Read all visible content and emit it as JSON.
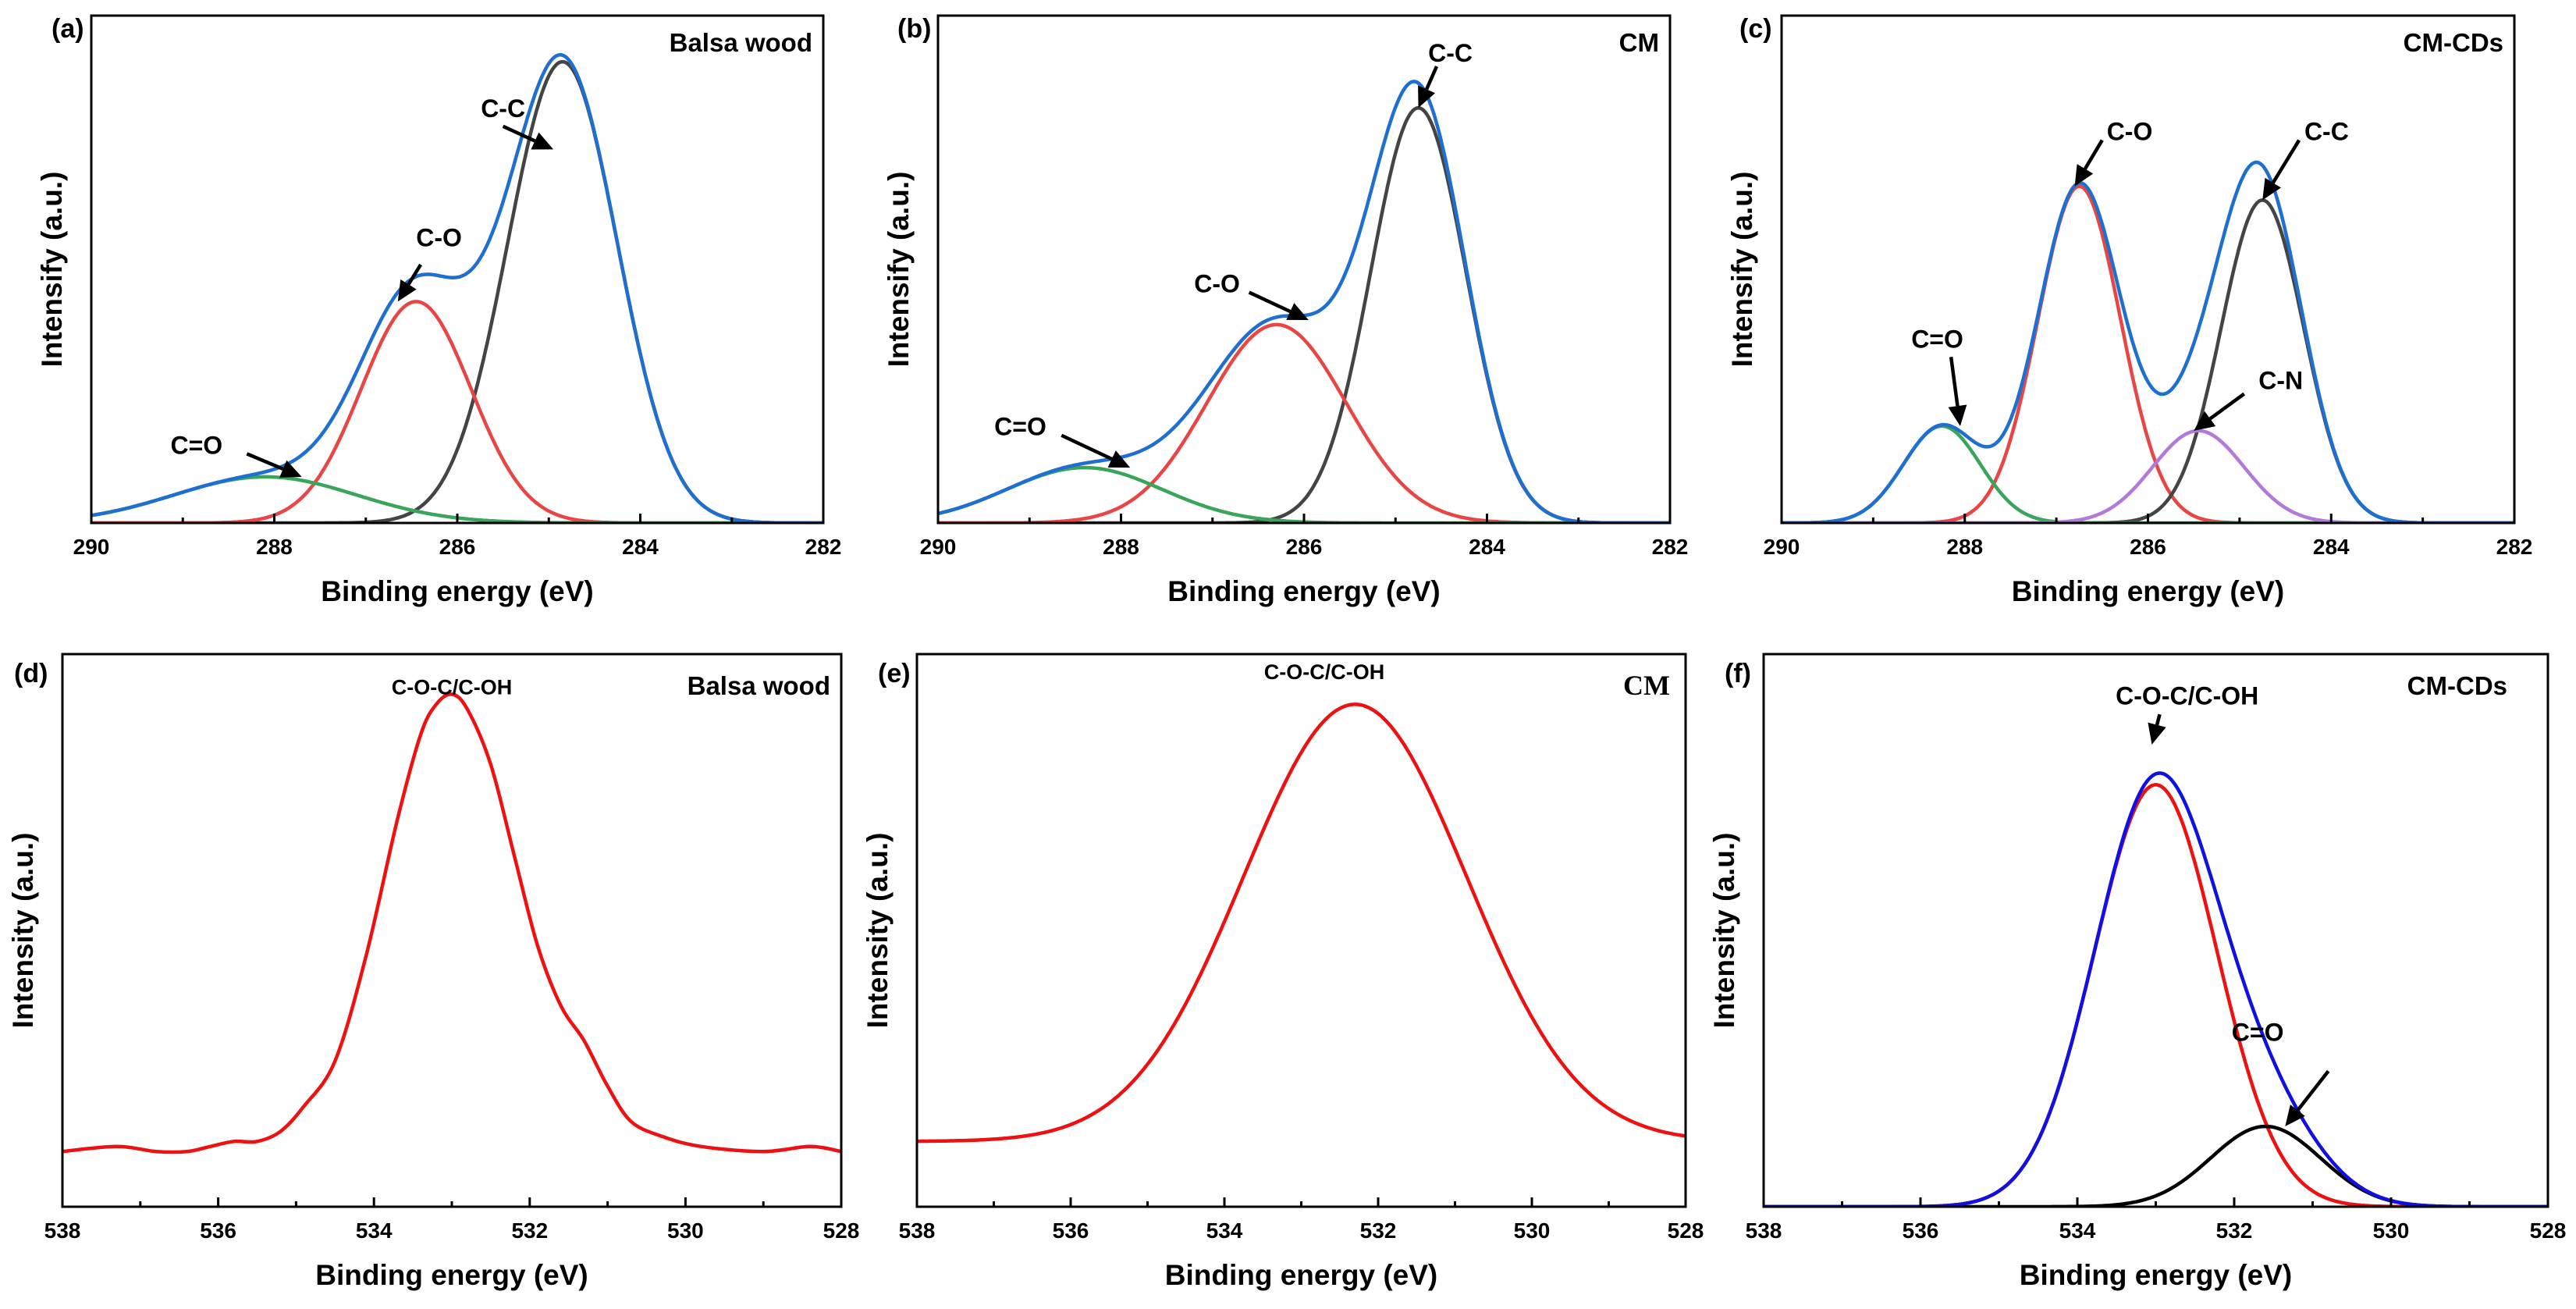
{
  "figure": {
    "panels": [
      {
        "id": "a",
        "panel_label": "(a)",
        "corner_label": "Balsa wood",
        "corner_font": "sans",
        "chart_ref": 0,
        "annotations": [
          {
            "text": "C-C",
            "label_at": [
              285.5,
              0.88
            ],
            "arrow_from": [
              285.5,
              0.86
            ],
            "arrow_to": [
              284.95,
              0.81
            ]
          },
          {
            "text": "C-O",
            "label_at": [
              286.2,
              0.6
            ],
            "arrow_from": [
              286.4,
              0.56
            ],
            "arrow_to": [
              286.65,
              0.48
            ]
          },
          {
            "text": "C=O",
            "label_at": [
              288.85,
              0.15
            ],
            "arrow_from": [
              288.3,
              0.15
            ],
            "arrow_to": [
              287.7,
              0.1
            ]
          }
        ]
      },
      {
        "id": "b",
        "panel_label": "(b)",
        "corner_label": "CM",
        "corner_font": "sans",
        "chart_ref": 1,
        "annotations": [
          {
            "text": "C-C",
            "label_at": [
              284.4,
              1.0
            ],
            "arrow_from": [
              284.55,
              0.99
            ],
            "arrow_to": [
              284.75,
              0.9
            ]
          },
          {
            "text": "C-O",
            "label_at": [
              286.95,
              0.5
            ],
            "arrow_from": [
              286.6,
              0.5
            ],
            "arrow_to": [
              285.95,
              0.44
            ]
          },
          {
            "text": "C=O",
            "label_at": [
              289.1,
              0.19
            ],
            "arrow_from": [
              288.65,
              0.19
            ],
            "arrow_to": [
              287.9,
              0.12
            ]
          }
        ]
      },
      {
        "id": "c",
        "panel_label": "(c)",
        "corner_label": "CM-CDs",
        "corner_font": "sans",
        "chart_ref": 2,
        "annotations": [
          {
            "text": "C-O",
            "label_at": [
              286.2,
              0.83
            ],
            "arrow_from": [
              286.5,
              0.83
            ],
            "arrow_to": [
              286.8,
              0.73
            ]
          },
          {
            "text": "C-C",
            "label_at": [
              284.05,
              0.83
            ],
            "arrow_from": [
              284.35,
              0.83
            ],
            "arrow_to": [
              284.75,
              0.7
            ]
          },
          {
            "text": "C=O",
            "label_at": [
              288.3,
              0.38
            ],
            "arrow_from": [
              288.15,
              0.36
            ],
            "arrow_to": [
              288.05,
              0.21
            ]
          },
          {
            "text": "C-N",
            "label_at": [
              284.55,
              0.29
            ],
            "arrow_from": [
              284.95,
              0.28
            ],
            "arrow_to": [
              285.5,
              0.2
            ]
          }
        ]
      },
      {
        "id": "d",
        "panel_label": "(d)",
        "corner_label": "Balsa wood",
        "corner_font": "sans",
        "chart_ref": 3,
        "annotations": [
          {
            "text": "C-O-C/C-OH",
            "label_at": [
              533.0,
              1.02
            ],
            "small": true
          }
        ]
      },
      {
        "id": "e",
        "panel_label": "(e)",
        "corner_label": "CM",
        "corner_font": "serif",
        "chart_ref": 4,
        "annotations": [
          {
            "text": "C-O-C/C-OH",
            "label_at": [
              532.7,
              1.05
            ],
            "small": true
          }
        ]
      },
      {
        "id": "f",
        "panel_label": "(f)",
        "corner_label": "CM-CDs",
        "corner_font": "sans",
        "chart_ref": 5,
        "annotations": [
          {
            "text": "C-O-C/C-OH",
            "label_at": [
              532.6,
              1.0
            ],
            "arrow_from": [
              532.95,
              0.98
            ],
            "arrow_to": [
              533.05,
              0.92
            ]
          },
          {
            "text": "C=O",
            "label_at": [
              531.7,
              0.33
            ],
            "arrow_from": [
              530.8,
              0.27
            ],
            "arrow_to": [
              531.35,
              0.16
            ]
          }
        ]
      }
    ]
  },
  "chart_data": [
    {
      "type": "line",
      "title": "Balsa wood",
      "xlabel": "Binding energy (eV)",
      "ylabel": "Intensify (a.u.)",
      "xlim": [
        290,
        282
      ],
      "ylim": [
        0,
        1.1
      ],
      "xticks": [
        290,
        288,
        286,
        284,
        282
      ],
      "y_ticks_shown": false,
      "curve_model": "gaussian",
      "series": [
        {
          "name": "C-C",
          "color": "#444444",
          "center": 284.85,
          "amplitude": 1.0,
          "sigma": 0.6
        },
        {
          "name": "C-O",
          "color": "#e84545",
          "center": 286.45,
          "amplitude": 0.48,
          "sigma": 0.6
        },
        {
          "name": "C=O",
          "color": "#3aa55a",
          "center": 288.1,
          "amplitude": 0.1,
          "sigma": 1.0
        },
        {
          "name": "Envelope",
          "color": "#1f6fd1",
          "sum_of_components": true
        }
      ]
    },
    {
      "type": "line",
      "title": "CM",
      "xlabel": "Binding energy (eV)",
      "ylabel": "Intensify (a.u.)",
      "xlim": [
        290,
        282
      ],
      "ylim": [
        0,
        1.1
      ],
      "xticks": [
        290,
        288,
        286,
        284,
        282
      ],
      "y_ticks_shown": false,
      "curve_model": "gaussian",
      "series": [
        {
          "name": "C-C",
          "color": "#444444",
          "center": 284.75,
          "amplitude": 0.9,
          "sigma": 0.52
        },
        {
          "name": "C-O",
          "color": "#e84545",
          "center": 286.3,
          "amplitude": 0.43,
          "sigma": 0.76
        },
        {
          "name": "C=O",
          "color": "#3aa55a",
          "center": 288.4,
          "amplitude": 0.12,
          "sigma": 0.85
        },
        {
          "name": "Envelope",
          "color": "#1f6fd1",
          "sum_of_components": true
        }
      ]
    },
    {
      "type": "line",
      "title": "CM-CDs",
      "xlabel": "Binding energy (eV)",
      "ylabel": "Intensify (a.u.)",
      "xlim": [
        290,
        282
      ],
      "ylim": [
        0,
        1.1
      ],
      "xticks": [
        290,
        288,
        286,
        284,
        282
      ],
      "y_ticks_shown": false,
      "curve_model": "gaussian",
      "series": [
        {
          "name": "C-O",
          "color": "#e84545",
          "center": 286.75,
          "amplitude": 0.73,
          "sigma": 0.45
        },
        {
          "name": "C-C",
          "color": "#444444",
          "center": 284.75,
          "amplitude": 0.7,
          "sigma": 0.45
        },
        {
          "name": "C=O",
          "color": "#3aa55a",
          "center": 288.25,
          "amplitude": 0.21,
          "sigma": 0.42
        },
        {
          "name": "C-N",
          "color": "#b27ad8",
          "center": 285.45,
          "amplitude": 0.2,
          "sigma": 0.5
        },
        {
          "name": "Envelope",
          "color": "#1f6fd1",
          "sum_of_components": true
        }
      ]
    },
    {
      "type": "line",
      "title": "Balsa wood",
      "xlabel": "Binding energy (eV)",
      "ylabel": "Intensity (a.u.)",
      "xlim": [
        538,
        528
      ],
      "ylim": [
        0,
        1.1
      ],
      "xticks": [
        538,
        536,
        534,
        532,
        530,
        528
      ],
      "y_ticks_shown": false,
      "curve_model": "points",
      "series": [
        {
          "name": "O 1s",
          "color": "#ee1111",
          "x": [
            538,
            537.3,
            536.8,
            536.4,
            536.1,
            535.8,
            535.5,
            535.2,
            534.9,
            534.5,
            534.1,
            533.7,
            533.4,
            533.2,
            533.0,
            532.8,
            532.5,
            532.2,
            531.9,
            531.6,
            531.3,
            531.0,
            530.7,
            530.3,
            529.8,
            529.0,
            528.4,
            528.0
          ],
          "y": [
            0.11,
            0.12,
            0.11,
            0.11,
            0.12,
            0.13,
            0.13,
            0.15,
            0.2,
            0.29,
            0.5,
            0.77,
            0.94,
            1.0,
            1.02,
            0.99,
            0.88,
            0.7,
            0.52,
            0.4,
            0.33,
            0.24,
            0.17,
            0.14,
            0.12,
            0.11,
            0.12,
            0.11
          ]
        }
      ]
    },
    {
      "type": "line",
      "title": "CM",
      "xlabel": "Binding energy (eV)",
      "ylabel": "Intensity (a.u.)",
      "xlim": [
        538,
        528
      ],
      "ylim": [
        0,
        1.1
      ],
      "xticks": [
        538,
        536,
        534,
        532,
        530,
        528
      ],
      "y_ticks_shown": false,
      "curve_model": "gaussian",
      "series": [
        {
          "name": "O 1s",
          "color": "#ee1111",
          "center": 532.3,
          "amplitude": 0.87,
          "sigma": 1.45,
          "baseline": 0.13
        }
      ]
    },
    {
      "type": "line",
      "title": "CM-CDs",
      "xlabel": "Binding energy (eV)",
      "ylabel": "Intensity (a.u.)",
      "xlim": [
        538,
        528
      ],
      "ylim": [
        0,
        1.1
      ],
      "xticks": [
        538,
        536,
        534,
        532,
        530,
        528
      ],
      "y_ticks_shown": false,
      "curve_model": "gaussian",
      "series": [
        {
          "name": "C-O-C/C-OH",
          "color": "#ee1111",
          "center": 533.0,
          "amplitude": 0.84,
          "sigma": 0.78
        },
        {
          "name": "C=O",
          "color": "#000000",
          "center": 531.6,
          "amplitude": 0.16,
          "sigma": 0.7
        },
        {
          "name": "Envelope",
          "color": "#1010e0",
          "sum_of_components": true
        }
      ]
    }
  ]
}
